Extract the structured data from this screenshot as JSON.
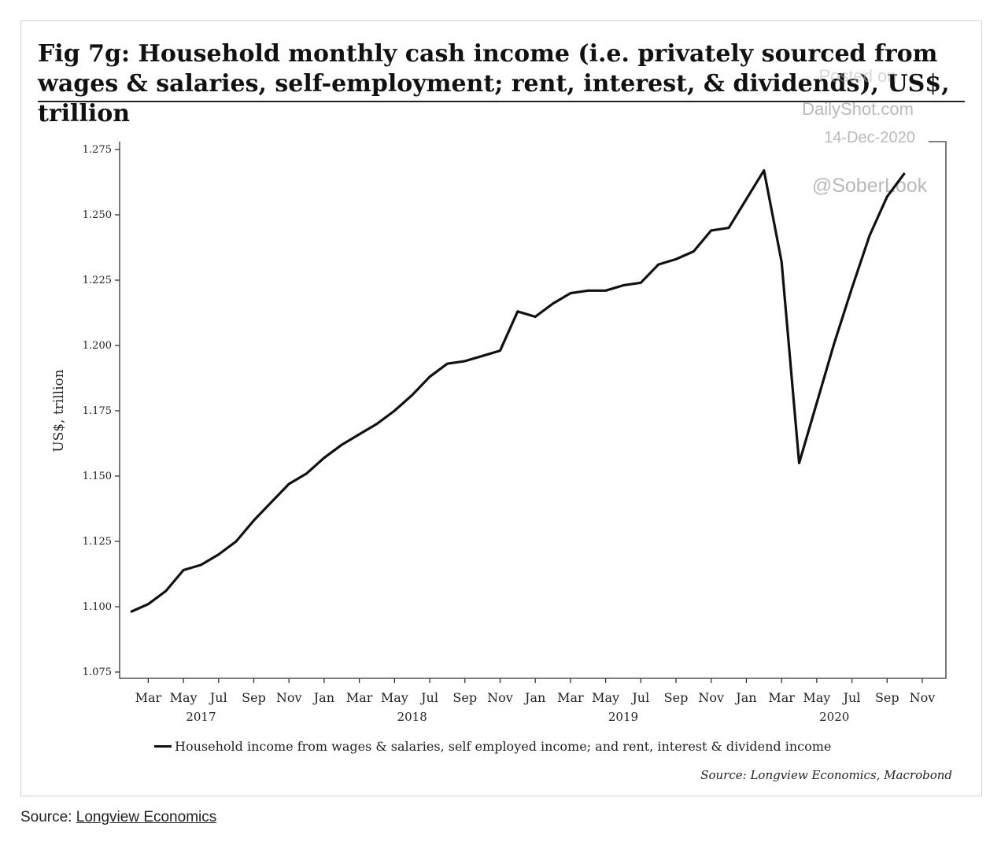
{
  "figure": {
    "fig_label": "Fig 7g:",
    "title": "Household monthly cash income (i.e. privately sourced from wages & salaries, self-employment; rent, interest, & dividends), US$, trillion"
  },
  "watermark": {
    "line1": "Posted on",
    "line2": "DailyShot.com",
    "line3": "14-Dec-2020",
    "handle": "@SoberLook"
  },
  "chart_source": "Source: Longview Economics, Macrobond",
  "page_source": {
    "label": "Source: ",
    "link_text": "Longview Economics"
  },
  "chart_data": {
    "type": "line",
    "title": "Household monthly cash income (i.e. privately sourced from wages & salaries, self-employment; rent, interest, & dividends), US$, trillion",
    "xlabel": "",
    "ylabel": "US$, trillion",
    "ylim": [
      1.075,
      1.275
    ],
    "yticks": [
      "1.075",
      "1.100",
      "1.125",
      "1.150",
      "1.175",
      "1.200",
      "1.225",
      "1.250",
      "1.275"
    ],
    "x_tick_labels": [
      "Mar",
      "May",
      "Jul",
      "Sep",
      "Nov",
      "Jan",
      "Mar",
      "May",
      "Jul",
      "Sep",
      "Nov",
      "Jan",
      "Mar",
      "May",
      "Jul",
      "Sep",
      "Nov",
      "Jan",
      "Mar",
      "May",
      "Jul",
      "Sep",
      "Nov"
    ],
    "year_labels": [
      {
        "label": "2017",
        "at": "2017-06"
      },
      {
        "label": "2018",
        "at": "2018-06"
      },
      {
        "label": "2019",
        "at": "2019-06"
      },
      {
        "label": "2020",
        "at": "2020-06"
      }
    ],
    "grid": false,
    "legend": "bottom",
    "series": [
      {
        "name": "Household income from wages & salaries, self employed income; and rent, interest & dividend income",
        "x": [
          "2017-02",
          "2017-03",
          "2017-04",
          "2017-05",
          "2017-06",
          "2017-07",
          "2017-08",
          "2017-09",
          "2017-10",
          "2017-11",
          "2017-12",
          "2018-01",
          "2018-02",
          "2018-03",
          "2018-04",
          "2018-05",
          "2018-06",
          "2018-07",
          "2018-08",
          "2018-09",
          "2018-10",
          "2018-11",
          "2018-12",
          "2019-01",
          "2019-02",
          "2019-03",
          "2019-04",
          "2019-05",
          "2019-06",
          "2019-07",
          "2019-08",
          "2019-09",
          "2019-10",
          "2019-11",
          "2019-12",
          "2020-01",
          "2020-02",
          "2020-03",
          "2020-04",
          "2020-05",
          "2020-06",
          "2020-07",
          "2020-08",
          "2020-09",
          "2020-10"
        ],
        "values": [
          1.098,
          1.101,
          1.106,
          1.114,
          1.116,
          1.12,
          1.125,
          1.133,
          1.14,
          1.147,
          1.151,
          1.157,
          1.162,
          1.166,
          1.17,
          1.175,
          1.181,
          1.188,
          1.193,
          1.194,
          1.196,
          1.198,
          1.213,
          1.211,
          1.216,
          1.22,
          1.221,
          1.221,
          1.223,
          1.224,
          1.231,
          1.233,
          1.236,
          1.244,
          1.245,
          1.256,
          1.267,
          1.232,
          1.155,
          1.178,
          1.201,
          1.222,
          1.242,
          1.257,
          1.266
        ]
      }
    ]
  }
}
